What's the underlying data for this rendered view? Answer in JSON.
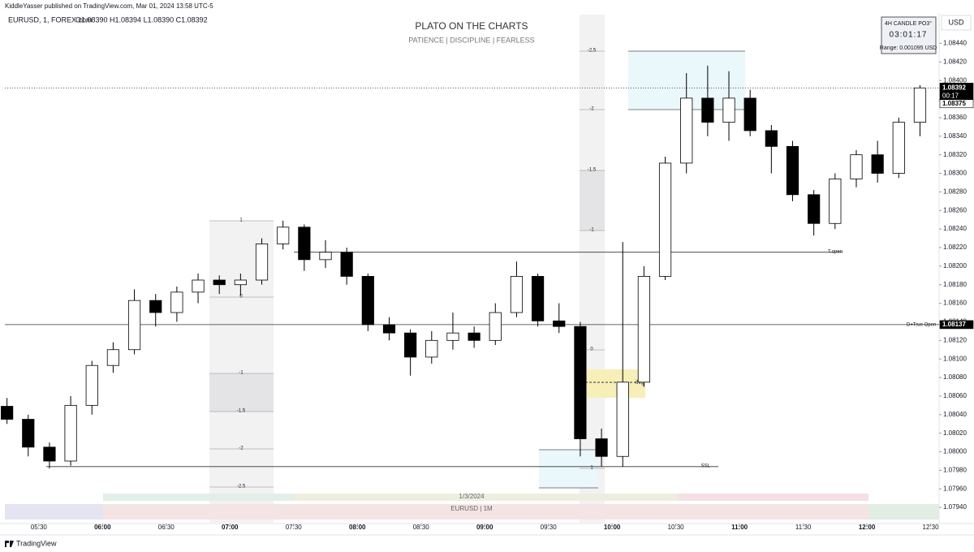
{
  "header": {
    "publisher": "KiddleYasser published on TradingView.com, Mar 01, 2024 13:58 UTC-5",
    "symbol": "EURUSD, 1, FOREX.com",
    "ohlc": "O1.08390 H1.08394 L1.08390 C1.08392",
    "currency": "USD",
    "brand": "TradingView"
  },
  "widget": {
    "title": "4H CANDLE PO3°",
    "timer": "03:01:17",
    "range": "Range: 0.001095 USD"
  },
  "chart_data": {
    "type": "candlestick",
    "title": "PLATO ON THE CHARTS",
    "subtitle": "PATIENCE  |  DISCIPLINE  |  FEARLESS",
    "x": [
      315,
      325,
      335,
      345,
      355,
      365,
      375,
      385,
      395,
      405,
      415,
      425,
      435,
      445,
      455,
      465,
      475,
      485,
      495,
      505,
      515,
      525,
      535,
      545,
      555,
      565,
      575,
      585,
      595,
      605,
      615,
      625,
      635,
      645,
      655,
      665,
      675,
      685,
      695,
      705,
      715,
      725,
      735,
      745
    ],
    "open": [
      1.08049,
      1.08035,
      1.08005,
      1.0799,
      1.0805,
      1.08093,
      1.0811,
      1.08163,
      1.0815,
      1.08172,
      1.08185,
      1.0818,
      1.08185,
      1.08224,
      1.08242,
      1.08207,
      1.08215,
      1.08189,
      1.08137,
      1.08128,
      1.08102,
      1.0812,
      1.08128,
      1.0812,
      1.0815,
      1.08189,
      1.08141,
      1.08135,
      1.08014,
      1.07995,
      1.08075,
      1.08189,
      1.08311,
      1.08381,
      1.08355,
      1.08381,
      1.08346,
      1.08329,
      1.08277,
      1.08246,
      1.08294,
      1.0832,
      1.083,
      1.08355
    ],
    "high": [
      1.08058,
      1.0804,
      1.0801,
      1.0806,
      1.08098,
      1.08118,
      1.08175,
      1.0817,
      1.08178,
      1.08192,
      1.0819,
      1.08192,
      1.0823,
      1.08249,
      1.08245,
      1.08228,
      1.0822,
      1.08192,
      1.08145,
      1.08132,
      1.0813,
      1.0815,
      1.08135,
      1.0816,
      1.08205,
      1.08192,
      1.0816,
      1.0814,
      1.08025,
      1.08226,
      1.082,
      1.08318,
      1.08408,
      1.08416,
      1.0841,
      1.0839,
      1.08352,
      1.08335,
      1.08282,
      1.083,
      1.08325,
      1.08335,
      1.0836,
      1.08395
    ],
    "low": [
      1.0803,
      1.07995,
      1.07982,
      1.07985,
      1.0804,
      1.08085,
      1.08105,
      1.08135,
      1.0814,
      1.0816,
      1.0817,
      1.08168,
      1.0818,
      1.08218,
      1.08195,
      1.08198,
      1.0818,
      1.0813,
      1.0812,
      1.08082,
      1.08095,
      1.0811,
      1.08112,
      1.08115,
      1.08145,
      1.08135,
      1.08128,
      1.07995,
      1.07984,
      1.07984,
      1.0807,
      1.08185,
      1.083,
      1.0834,
      1.08335,
      1.0834,
      1.083,
      1.0827,
      1.08233,
      1.0824,
      1.08285,
      1.0829,
      1.08295,
      1.0834
    ],
    "close": [
      1.08035,
      1.08005,
      1.0799,
      1.0805,
      1.08093,
      1.0811,
      1.08163,
      1.0815,
      1.08172,
      1.08185,
      1.0818,
      1.08185,
      1.08224,
      1.08242,
      1.08207,
      1.08215,
      1.08189,
      1.08137,
      1.08128,
      1.08102,
      1.0812,
      1.08128,
      1.0812,
      1.0815,
      1.08189,
      1.08141,
      1.08135,
      1.08014,
      1.07995,
      1.08075,
      1.08189,
      1.08311,
      1.08381,
      1.08355,
      1.08381,
      1.08346,
      1.08329,
      1.08277,
      1.08246,
      1.08294,
      1.0832,
      1.083,
      1.08355,
      1.08392
    ],
    "up_color": "#ffffff",
    "down_color": "#000000",
    "xlim": [
      314,
      754
    ],
    "xticks": [
      {
        "value": 330,
        "label": "05:30"
      },
      {
        "value": 360,
        "label": "06:00"
      },
      {
        "value": 390,
        "label": "06:30"
      },
      {
        "value": 420,
        "label": "07:00"
      },
      {
        "value": 450,
        "label": "07:30"
      },
      {
        "value": 480,
        "label": "08:00"
      },
      {
        "value": 510,
        "label": "08:30"
      },
      {
        "value": 540,
        "label": "09:00"
      },
      {
        "value": 570,
        "label": "09:30"
      },
      {
        "value": 600,
        "label": "10:00"
      },
      {
        "value": 630,
        "label": "10:30"
      },
      {
        "value": 660,
        "label": "11:00"
      },
      {
        "value": 690,
        "label": "11:30"
      },
      {
        "value": 720,
        "label": "12:00"
      },
      {
        "value": 750,
        "label": "12:30"
      }
    ],
    "ylim": [
      1.07927,
      1.08471
    ],
    "yticks": [
      {
        "value": 1.0844,
        "label": "1.08440"
      },
      {
        "value": 1.0842,
        "label": "1.08420"
      },
      {
        "value": 1.084,
        "label": "1.08400"
      },
      {
        "value": 1.0838,
        "label": "1.08380"
      },
      {
        "value": 1.0836,
        "label": "1.08360"
      },
      {
        "value": 1.0834,
        "label": "1.08340"
      },
      {
        "value": 1.0832,
        "label": "1.08320"
      },
      {
        "value": 1.083,
        "label": "1.08300"
      },
      {
        "value": 1.0828,
        "label": "1.08280"
      },
      {
        "value": 1.0826,
        "label": "1.08260"
      },
      {
        "value": 1.0824,
        "label": "1.08240"
      },
      {
        "value": 1.0822,
        "label": "1.08220"
      },
      {
        "value": 1.082,
        "label": "1.08200"
      },
      {
        "value": 1.0818,
        "label": "1.08180"
      },
      {
        "value": 1.0816,
        "label": "1.08160"
      },
      {
        "value": 1.0814,
        "label": "1.08140"
      },
      {
        "value": 1.0812,
        "label": "1.08120"
      },
      {
        "value": 1.081,
        "label": "1.08100"
      },
      {
        "value": 1.0808,
        "label": "1.08080"
      },
      {
        "value": 1.0806,
        "label": "1.08060"
      },
      {
        "value": 1.0804,
        "label": "1.08040"
      },
      {
        "value": 1.0802,
        "label": "1.08020"
      },
      {
        "value": 1.08,
        "label": "1.08000"
      },
      {
        "value": 1.0798,
        "label": "1.07980"
      },
      {
        "value": 1.0796,
        "label": "1.07960"
      },
      {
        "value": 1.0794,
        "label": "1.07940"
      }
    ],
    "levels": [
      {
        "label": "T.open",
        "value": 1.08215
      },
      {
        "label": "D+True Open",
        "value": 1.08137
      },
      {
        "label": "SSL",
        "value": 1.07984
      }
    ],
    "price_labels": [
      {
        "value": 1.08392,
        "label": "1.08392"
      },
      {
        "value": 1.08375,
        "label": "1.08375"
      },
      {
        "value": 1.08137,
        "label": "1.08137"
      }
    ],
    "countdown": "00:17",
    "fib_left": [
      "1",
      "0",
      "-1",
      "-1.5",
      "-2",
      "-2.5"
    ],
    "fib_right": [
      "-2.5",
      "-2",
      "-1.5",
      "-1",
      "0",
      "1"
    ],
    "fvg_label": "ifvg",
    "session_date": "1/3/2024",
    "session_symbol": "EURUSD  |  1M"
  }
}
